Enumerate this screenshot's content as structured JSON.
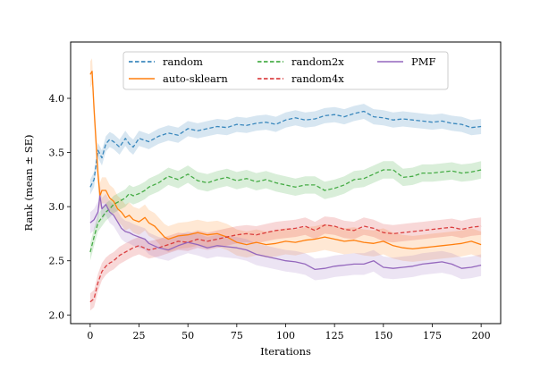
{
  "chart_data": {
    "type": "line",
    "title": "",
    "xlabel": "Iterations",
    "ylabel": "Rank (mean ± SE)",
    "xlim": [
      -10,
      210
    ],
    "ylim": [
      1.92,
      4.52
    ],
    "xticks": [
      0,
      25,
      50,
      75,
      100,
      125,
      150,
      175,
      200
    ],
    "yticks": [
      2.0,
      2.5,
      3.0,
      3.5,
      4.0
    ],
    "ytick_labels": [
      "2.0",
      "2.5",
      "3.0",
      "3.5",
      "4.0"
    ],
    "legend_position": "upper center",
    "series": [
      {
        "name": "random",
        "color": "#1f77b4",
        "dashed": true,
        "se": 0.07,
        "x": [
          0,
          2,
          4,
          6,
          8,
          10,
          12,
          15,
          18,
          20,
          22,
          25,
          30,
          35,
          40,
          45,
          50,
          55,
          60,
          65,
          70,
          75,
          80,
          85,
          90,
          95,
          100,
          105,
          110,
          115,
          120,
          125,
          130,
          135,
          140,
          145,
          150,
          155,
          160,
          165,
          170,
          175,
          180,
          185,
          190,
          195,
          200
        ],
        "y": [
          3.18,
          3.25,
          3.52,
          3.45,
          3.58,
          3.62,
          3.6,
          3.55,
          3.63,
          3.58,
          3.55,
          3.63,
          3.6,
          3.65,
          3.68,
          3.66,
          3.72,
          3.7,
          3.72,
          3.74,
          3.73,
          3.76,
          3.75,
          3.77,
          3.78,
          3.76,
          3.8,
          3.82,
          3.8,
          3.81,
          3.84,
          3.85,
          3.83,
          3.86,
          3.88,
          3.83,
          3.82,
          3.8,
          3.81,
          3.8,
          3.79,
          3.78,
          3.79,
          3.77,
          3.76,
          3.73,
          3.74
        ]
      },
      {
        "name": "auto-sklearn",
        "color": "#ff7f0e",
        "dashed": false,
        "se": 0.12,
        "x": [
          0,
          1,
          2,
          3,
          4,
          5,
          6,
          8,
          10,
          12,
          14,
          16,
          18,
          20,
          22,
          25,
          28,
          30,
          33,
          35,
          38,
          40,
          45,
          50,
          55,
          60,
          65,
          70,
          75,
          80,
          85,
          90,
          95,
          100,
          105,
          110,
          115,
          120,
          125,
          130,
          135,
          140,
          145,
          150,
          155,
          160,
          165,
          170,
          175,
          180,
          185,
          190,
          195,
          200
        ],
        "y": [
          4.22,
          4.25,
          3.9,
          3.6,
          3.3,
          3.1,
          3.15,
          3.15,
          3.08,
          3.05,
          2.98,
          2.95,
          2.9,
          2.92,
          2.88,
          2.86,
          2.9,
          2.85,
          2.82,
          2.78,
          2.72,
          2.7,
          2.73,
          2.74,
          2.76,
          2.74,
          2.75,
          2.72,
          2.67,
          2.65,
          2.67,
          2.65,
          2.66,
          2.68,
          2.67,
          2.69,
          2.7,
          2.72,
          2.7,
          2.68,
          2.69,
          2.67,
          2.66,
          2.68,
          2.64,
          2.62,
          2.61,
          2.62,
          2.63,
          2.64,
          2.65,
          2.66,
          2.68,
          2.65
        ]
      },
      {
        "name": "random2x",
        "color": "#2ca02c",
        "dashed": true,
        "se": 0.08,
        "x": [
          0,
          2,
          4,
          6,
          8,
          10,
          12,
          15,
          18,
          20,
          22,
          25,
          28,
          30,
          35,
          40,
          45,
          50,
          55,
          60,
          65,
          70,
          75,
          80,
          85,
          90,
          95,
          100,
          105,
          110,
          115,
          120,
          125,
          130,
          135,
          140,
          145,
          150,
          155,
          160,
          165,
          170,
          175,
          180,
          185,
          190,
          195,
          200
        ],
        "y": [
          2.58,
          2.72,
          2.85,
          2.9,
          2.95,
          2.98,
          3.02,
          3.05,
          3.08,
          3.12,
          3.1,
          3.12,
          3.15,
          3.18,
          3.22,
          3.28,
          3.25,
          3.3,
          3.24,
          3.22,
          3.25,
          3.27,
          3.24,
          3.26,
          3.23,
          3.25,
          3.22,
          3.2,
          3.18,
          3.2,
          3.2,
          3.15,
          3.17,
          3.2,
          3.25,
          3.26,
          3.3,
          3.34,
          3.34,
          3.27,
          3.28,
          3.31,
          3.31,
          3.32,
          3.33,
          3.31,
          3.32,
          3.34
        ]
      },
      {
        "name": "random4x",
        "color": "#d62728",
        "dashed": true,
        "se": 0.08,
        "x": [
          0,
          2,
          4,
          6,
          8,
          10,
          12,
          15,
          18,
          20,
          22,
          25,
          30,
          35,
          40,
          45,
          50,
          55,
          60,
          65,
          70,
          75,
          80,
          85,
          90,
          95,
          100,
          105,
          110,
          115,
          120,
          125,
          130,
          135,
          140,
          145,
          150,
          155,
          160,
          165,
          170,
          175,
          180,
          185,
          190,
          195,
          200
        ],
        "y": [
          2.12,
          2.15,
          2.3,
          2.4,
          2.45,
          2.48,
          2.5,
          2.55,
          2.58,
          2.6,
          2.62,
          2.64,
          2.6,
          2.62,
          2.65,
          2.68,
          2.67,
          2.7,
          2.68,
          2.7,
          2.72,
          2.74,
          2.75,
          2.74,
          2.76,
          2.78,
          2.79,
          2.8,
          2.82,
          2.78,
          2.83,
          2.82,
          2.79,
          2.78,
          2.82,
          2.8,
          2.76,
          2.75,
          2.76,
          2.77,
          2.78,
          2.79,
          2.8,
          2.81,
          2.79,
          2.81,
          2.82
        ]
      },
      {
        "name": "PMF",
        "color": "#9467bd",
        "dashed": false,
        "se": 0.1,
        "x": [
          0,
          2,
          4,
          5,
          6,
          8,
          10,
          12,
          14,
          16,
          18,
          20,
          22,
          25,
          28,
          30,
          35,
          40,
          45,
          50,
          55,
          60,
          65,
          70,
          75,
          80,
          85,
          90,
          95,
          100,
          105,
          110,
          115,
          120,
          125,
          130,
          135,
          140,
          145,
          150,
          155,
          160,
          165,
          170,
          175,
          180,
          185,
          190,
          195,
          200
        ],
        "y": [
          2.85,
          2.88,
          2.95,
          3.1,
          2.98,
          3.02,
          2.95,
          2.92,
          2.86,
          2.8,
          2.77,
          2.76,
          2.74,
          2.72,
          2.7,
          2.66,
          2.62,
          2.6,
          2.64,
          2.67,
          2.65,
          2.62,
          2.64,
          2.63,
          2.62,
          2.6,
          2.56,
          2.54,
          2.52,
          2.5,
          2.49,
          2.47,
          2.42,
          2.43,
          2.45,
          2.46,
          2.47,
          2.47,
          2.5,
          2.44,
          2.43,
          2.44,
          2.45,
          2.47,
          2.48,
          2.49,
          2.47,
          2.43,
          2.44,
          2.46
        ]
      }
    ]
  }
}
